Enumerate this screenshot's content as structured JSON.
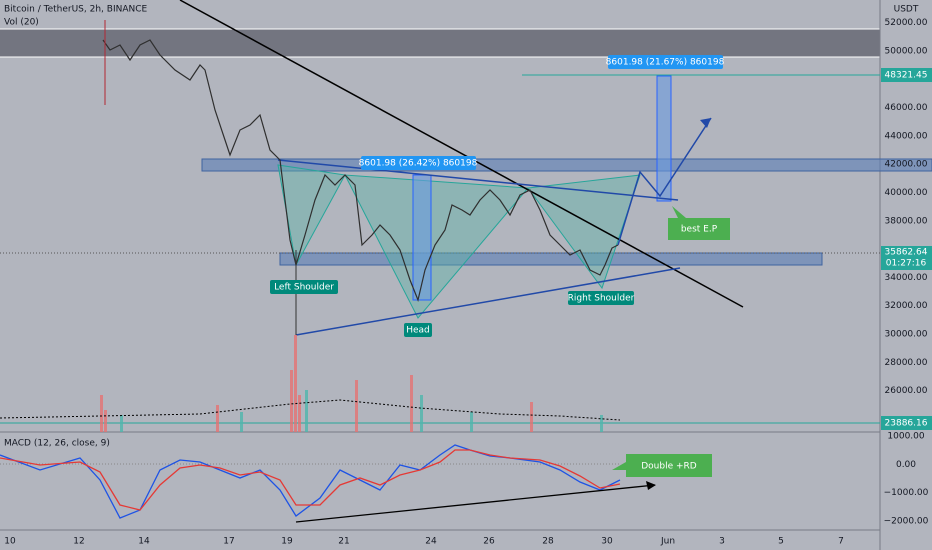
{
  "header": {
    "title": "Bitcoin / TetherUS, 2h, BINANCE",
    "volume_label": "Vol (20)",
    "currency": "USDT"
  },
  "price_axis": {
    "labels": [
      "52000.00",
      "50000.00",
      "46000.00",
      "44000.00",
      "42000.00",
      "40000.00",
      "38000.00",
      "34000.00",
      "32000.00",
      "30000.00",
      "28000.00",
      "26000.00"
    ]
  },
  "price_labels": {
    "target": "48321.45",
    "current": "35862.64",
    "countdown": "01:27:16",
    "volume_level": "23886.16"
  },
  "annotations": {
    "measure_top": "8601.98 (21.67%) 860198",
    "measure_mid": "8601.98 (26.42%) 860198",
    "left_shoulder": "Left Shoulder",
    "head": "Head",
    "right_shoulder": "Right Shoulder",
    "entry": "best E.P",
    "divergence": "Double +RD"
  },
  "macd": {
    "label": "MACD (12, 26, close, 9)",
    "axis_labels": [
      "1000.00",
      "0.00",
      "−1000.00",
      "−2000.00"
    ]
  },
  "time_axis": {
    "labels": [
      "10",
      "12",
      "14",
      "17",
      "19",
      "21",
      "24",
      "26",
      "28",
      "30",
      "Jun",
      "3",
      "5",
      "7"
    ]
  }
}
